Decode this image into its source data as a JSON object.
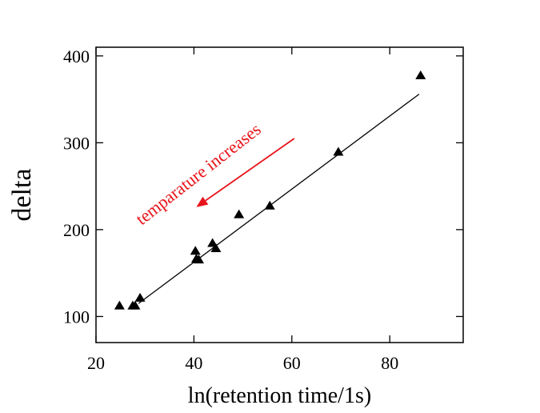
{
  "chart_data": {
    "type": "scatter",
    "xlabel": "ln(retention time/1s)",
    "ylabel": "delta",
    "xlim": [
      20,
      95
    ],
    "ylim": [
      70,
      410
    ],
    "x_ticks": [
      20,
      40,
      60,
      80
    ],
    "y_ticks": [
      100,
      200,
      300,
      400
    ],
    "x_tick_labels": [
      "20",
      "40",
      "60",
      "80"
    ],
    "y_tick_labels": [
      "100",
      "200",
      "300",
      "400"
    ],
    "grid": false,
    "marker": "triangle",
    "points": [
      {
        "x": 24.8,
        "y": 112
      },
      {
        "x": 27.5,
        "y": 112
      },
      {
        "x": 28.0,
        "y": 112
      },
      {
        "x": 29.0,
        "y": 121
      },
      {
        "x": 40.3,
        "y": 175
      },
      {
        "x": 40.5,
        "y": 166
      },
      {
        "x": 41.0,
        "y": 165
      },
      {
        "x": 43.8,
        "y": 184
      },
      {
        "x": 44.5,
        "y": 178
      },
      {
        "x": 49.2,
        "y": 217
      },
      {
        "x": 55.5,
        "y": 227
      },
      {
        "x": 69.5,
        "y": 289
      },
      {
        "x": 86.3,
        "y": 377
      }
    ],
    "fit_line": {
      "x": [
        28.7,
        86.0
      ],
      "y": [
        115,
        356
      ]
    },
    "annotation": {
      "text": "temparature increases",
      "color": "#e8141b",
      "arrow_from": {
        "x": 60.5,
        "y": 305
      },
      "arrow_to": {
        "x": 40.5,
        "y": 226
      }
    }
  }
}
